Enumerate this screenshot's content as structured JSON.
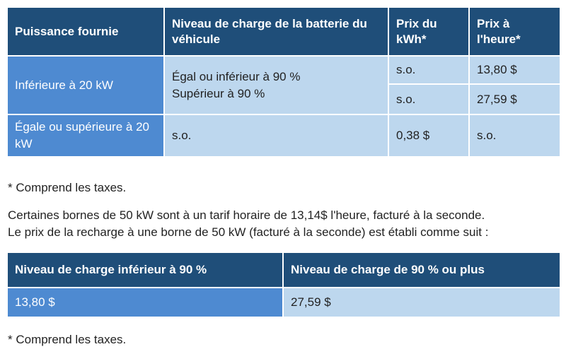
{
  "table1": {
    "headers": [
      "Puissance fournie",
      "Niveau de charge de la batterie du véhicule",
      "Prix du kWh*",
      "Prix à l'heure*"
    ],
    "row1": {
      "power": "Inférieure à 20 kW",
      "level_line1": "Égal ou inférieur à 90 %",
      "level_line2": "Supérieur à 90 %",
      "kwh_a": "s.o.",
      "hour_a": "13,80 $",
      "kwh_b": "s.o.",
      "hour_b": "27,59 $"
    },
    "row2": {
      "power": "Égale ou supérieure à 20 kW",
      "level": "s.o.",
      "kwh": "0,38 $",
      "hour": "s.o."
    }
  },
  "note1": "* Comprend les taxes.",
  "paragraph": {
    "line1": "Certaines bornes de 50 kW sont à un tarif horaire de 13,14$ l'heure, facturé à la seconde.",
    "line2": "Le prix de la recharge à une borne de 50 kW (facturé à la seconde) est établi comme suit :"
  },
  "table2": {
    "headers": [
      "Niveau de charge inférieur à 90 %",
      "Niveau de charge de 90 % ou plus"
    ],
    "values": [
      "13,80 $",
      "27,59 $"
    ]
  },
  "note2": "* Comprend les taxes.",
  "colors": {
    "header": "#1f4e79",
    "accent_cell": "#4e8ad1",
    "light_cell": "#bdd7ee"
  }
}
